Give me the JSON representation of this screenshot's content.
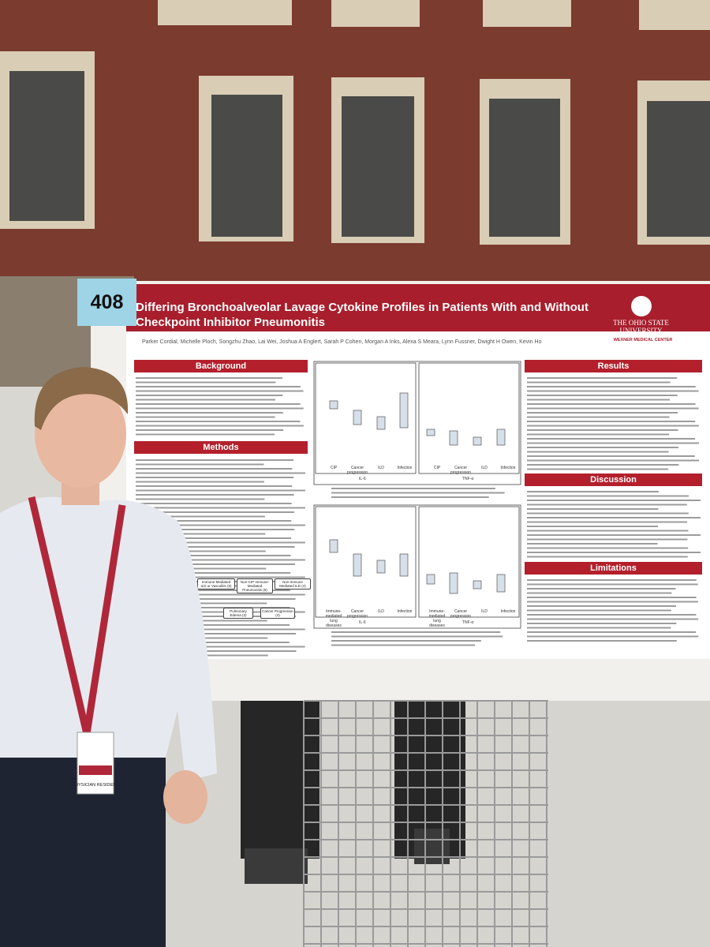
{
  "tag_number": "408",
  "poster": {
    "title": "Differing Bronchoalveolar Lavage Cytokine Profiles in Patients With and Without Checkpoint Inhibitor Pneumonitis",
    "authors": "Parker Cordial, Michelle Ploch, Songzhu Zhao, Lai Wei, Joshua A Englert, Sarah P Cohen, Morgan A Inks, Alexa S Meara, Lynn Fussner, Dwight H Owen, Kevin Ho",
    "institution": {
      "name": "THE OHIO STATE UNIVERSITY",
      "center": "WEXNER MEDICAL CENTER"
    },
    "sections": [
      "Background",
      "Methods",
      "Results",
      "Discussion",
      "Limitations"
    ],
    "figure_top": {
      "categories": [
        "CIP",
        "Cancer progression",
        "ILD",
        "Infection"
      ],
      "panels": [
        "IL-6",
        "TNF-α"
      ]
    },
    "figure_bottom": {
      "categories": [
        "Immune-mediated lung diseases",
        "Cancer progression",
        "ILD",
        "Infection"
      ],
      "panels": [
        "IL-6",
        "TNF-α"
      ]
    },
    "flowchart": [
      "Immune-Mediated ILD or Vasculitis (5)",
      "Non-CIP Immune-Mediated Pneumonitis (6)",
      "Non-immune Mediated ILD (4)",
      "Pulmonary Edema (2)",
      "Cancer Progression (4)"
    ]
  },
  "badge": {
    "role": "PHYSICIAN RESIDENT"
  }
}
